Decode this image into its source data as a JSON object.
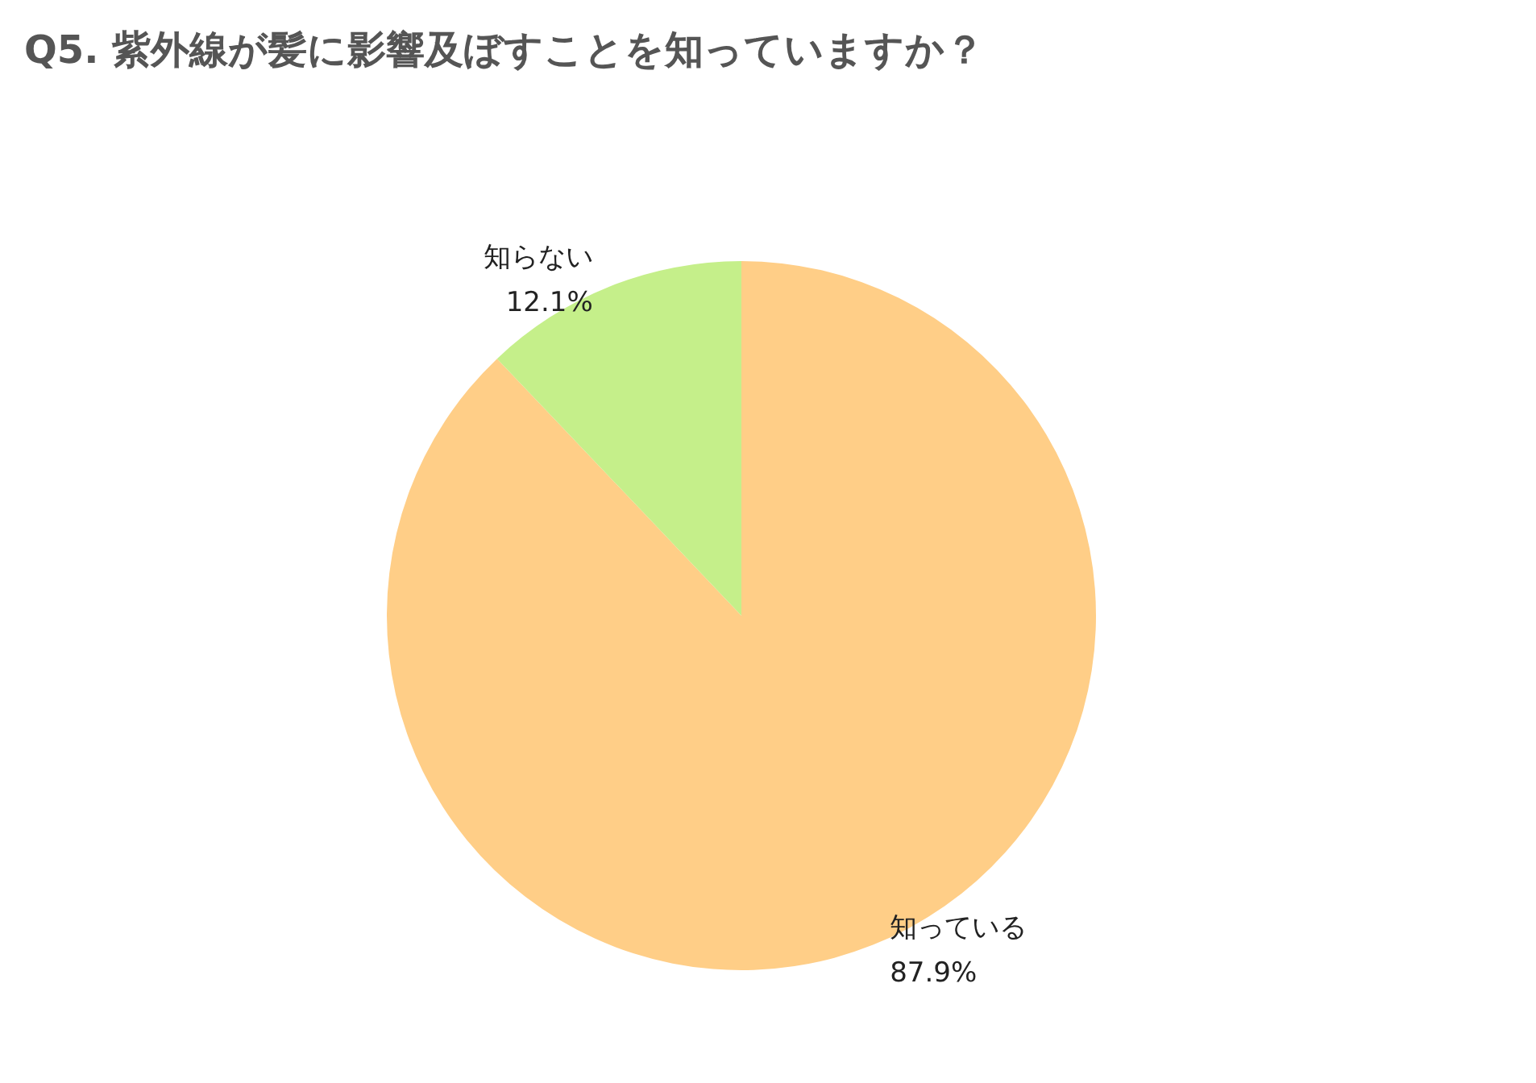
{
  "chart_data": {
    "type": "pie",
    "title": "Q5. 紫外線が髪に影響及ぼすことを知っていますか？",
    "categories": [
      "知っている",
      "知らない"
    ],
    "values": [
      87.9,
      12.1
    ],
    "colors": [
      "#ffce87",
      "#c5ef8a"
    ],
    "value_labels": [
      "87.9%",
      "12.1%"
    ],
    "legend": false
  }
}
